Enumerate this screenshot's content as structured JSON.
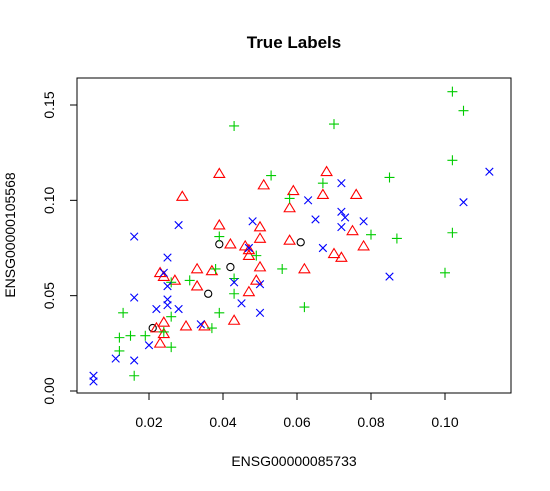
{
  "chart_data": {
    "type": "scatter",
    "title": "True Labels",
    "xlabel": "ENSG00000085733",
    "ylabel": "ENSG00000105568",
    "xlim": [
      0.0,
      0.115
    ],
    "ylim": [
      0.0,
      0.155
    ],
    "xticks": [
      0.02,
      0.04,
      0.06,
      0.08,
      0.1
    ],
    "xtick_labels": [
      "0.02",
      "0.04",
      "0.06",
      "0.08",
      "0.10"
    ],
    "yticks": [
      0.0,
      0.05,
      0.1,
      0.15
    ],
    "ytick_labels": [
      "0.00",
      "0.05",
      "0.10",
      "0.15"
    ],
    "grid": false,
    "series": [
      {
        "marker": "circle",
        "color": "#000000",
        "points": [
          [
            0.021,
            0.033
          ],
          [
            0.039,
            0.077
          ],
          [
            0.042,
            0.065
          ],
          [
            0.036,
            0.051
          ],
          [
            0.061,
            0.078
          ]
        ]
      },
      {
        "marker": "triangle",
        "color": "#ff0000",
        "points": [
          [
            0.029,
            0.102
          ],
          [
            0.039,
            0.114
          ],
          [
            0.051,
            0.108
          ],
          [
            0.068,
            0.115
          ],
          [
            0.076,
            0.103
          ],
          [
            0.058,
            0.096
          ],
          [
            0.067,
            0.103
          ],
          [
            0.059,
            0.105
          ],
          [
            0.039,
            0.087
          ],
          [
            0.05,
            0.086
          ],
          [
            0.042,
            0.077
          ],
          [
            0.046,
            0.076
          ],
          [
            0.05,
            0.08
          ],
          [
            0.058,
            0.079
          ],
          [
            0.047,
            0.074
          ],
          [
            0.047,
            0.071
          ],
          [
            0.05,
            0.065
          ],
          [
            0.062,
            0.064
          ],
          [
            0.033,
            0.064
          ],
          [
            0.037,
            0.063
          ],
          [
            0.023,
            0.062
          ],
          [
            0.024,
            0.06
          ],
          [
            0.027,
            0.058
          ],
          [
            0.049,
            0.058
          ],
          [
            0.033,
            0.055
          ],
          [
            0.047,
            0.052
          ],
          [
            0.07,
            0.072
          ],
          [
            0.072,
            0.07
          ],
          [
            0.075,
            0.084
          ],
          [
            0.078,
            0.076
          ],
          [
            0.024,
            0.036
          ],
          [
            0.043,
            0.037
          ],
          [
            0.03,
            0.034
          ],
          [
            0.022,
            0.033
          ],
          [
            0.024,
            0.03
          ],
          [
            0.023,
            0.025
          ],
          [
            0.035,
            0.034
          ]
        ]
      },
      {
        "marker": "plus",
        "color": "#00cc00",
        "points": [
          [
            0.102,
            0.157
          ],
          [
            0.105,
            0.147
          ],
          [
            0.043,
            0.139
          ],
          [
            0.07,
            0.14
          ],
          [
            0.102,
            0.121
          ],
          [
            0.085,
            0.112
          ],
          [
            0.053,
            0.113
          ],
          [
            0.067,
            0.109
          ],
          [
            0.058,
            0.101
          ],
          [
            0.087,
            0.08
          ],
          [
            0.102,
            0.083
          ],
          [
            0.1,
            0.062
          ],
          [
            0.08,
            0.082
          ],
          [
            0.039,
            0.081
          ],
          [
            0.049,
            0.071
          ],
          [
            0.038,
            0.064
          ],
          [
            0.056,
            0.064
          ],
          [
            0.043,
            0.051
          ],
          [
            0.043,
            0.059
          ],
          [
            0.031,
            0.058
          ],
          [
            0.026,
            0.057
          ],
          [
            0.039,
            0.041
          ],
          [
            0.026,
            0.039
          ],
          [
            0.062,
            0.044
          ],
          [
            0.037,
            0.033
          ],
          [
            0.013,
            0.041
          ],
          [
            0.024,
            0.031
          ],
          [
            0.015,
            0.029
          ],
          [
            0.012,
            0.028
          ],
          [
            0.019,
            0.029
          ],
          [
            0.012,
            0.021
          ],
          [
            0.026,
            0.023
          ],
          [
            0.016,
            0.008
          ]
        ]
      },
      {
        "marker": "x",
        "color": "#0000ff",
        "points": [
          [
            0.112,
            0.115
          ],
          [
            0.072,
            0.109
          ],
          [
            0.063,
            0.1
          ],
          [
            0.048,
            0.089
          ],
          [
            0.072,
            0.094
          ],
          [
            0.065,
            0.09
          ],
          [
            0.073,
            0.091
          ],
          [
            0.078,
            0.089
          ],
          [
            0.072,
            0.086
          ],
          [
            0.028,
            0.087
          ],
          [
            0.016,
            0.081
          ],
          [
            0.105,
            0.099
          ],
          [
            0.067,
            0.075
          ],
          [
            0.025,
            0.07
          ],
          [
            0.047,
            0.075
          ],
          [
            0.024,
            0.062
          ],
          [
            0.025,
            0.055
          ],
          [
            0.043,
            0.057
          ],
          [
            0.05,
            0.056
          ],
          [
            0.085,
            0.06
          ],
          [
            0.016,
            0.049
          ],
          [
            0.025,
            0.048
          ],
          [
            0.025,
            0.045
          ],
          [
            0.045,
            0.046
          ],
          [
            0.028,
            0.043
          ],
          [
            0.022,
            0.043
          ],
          [
            0.034,
            0.035
          ],
          [
            0.05,
            0.041
          ],
          [
            0.02,
            0.024
          ],
          [
            0.011,
            0.017
          ],
          [
            0.016,
            0.016
          ],
          [
            0.005,
            0.008
          ],
          [
            0.005,
            0.005
          ]
        ]
      }
    ]
  }
}
